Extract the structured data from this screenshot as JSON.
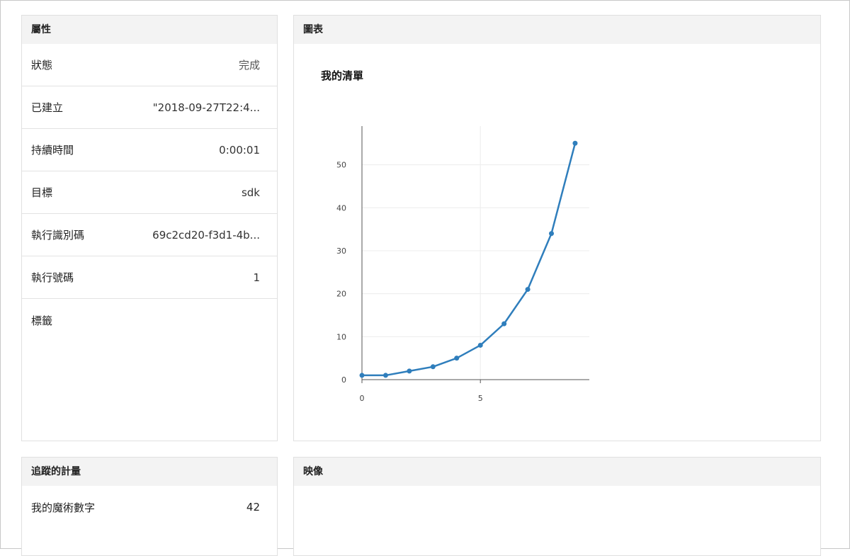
{
  "properties": {
    "header": "屬性",
    "rows": [
      {
        "label": "狀態",
        "value": "完成"
      },
      {
        "label": "已建立",
        "value": "\"2018-09-27T22:4..."
      },
      {
        "label": "持續時間",
        "value": "0:00:01"
      },
      {
        "label": "目標",
        "value": "sdk"
      },
      {
        "label": "執行識別碼",
        "value": "69c2cd20-f3d1-4b..."
      },
      {
        "label": "執行號碼",
        "value": "1"
      },
      {
        "label": "標籤",
        "value": ""
      }
    ]
  },
  "chart_panel": {
    "header": "圖表"
  },
  "chart_data": {
    "type": "line",
    "title": "我的清單",
    "xlabel": "",
    "ylabel": "",
    "x": [
      0,
      1,
      2,
      3,
      4,
      5,
      6,
      7,
      8,
      9
    ],
    "y": [
      1,
      1,
      2,
      3,
      5,
      8,
      13,
      21,
      34,
      55
    ],
    "xlim": [
      0,
      9.6
    ],
    "ylim": [
      0,
      59
    ],
    "xticks": [
      0,
      5
    ],
    "yticks": [
      0,
      10,
      20,
      30,
      40,
      50
    ],
    "color": "#2f7ebc",
    "grid": true
  },
  "metrics": {
    "header": "追蹤的計量",
    "rows": [
      {
        "label": "我的魔術數字",
        "value": "42"
      }
    ]
  },
  "images_panel": {
    "header": "映像"
  }
}
